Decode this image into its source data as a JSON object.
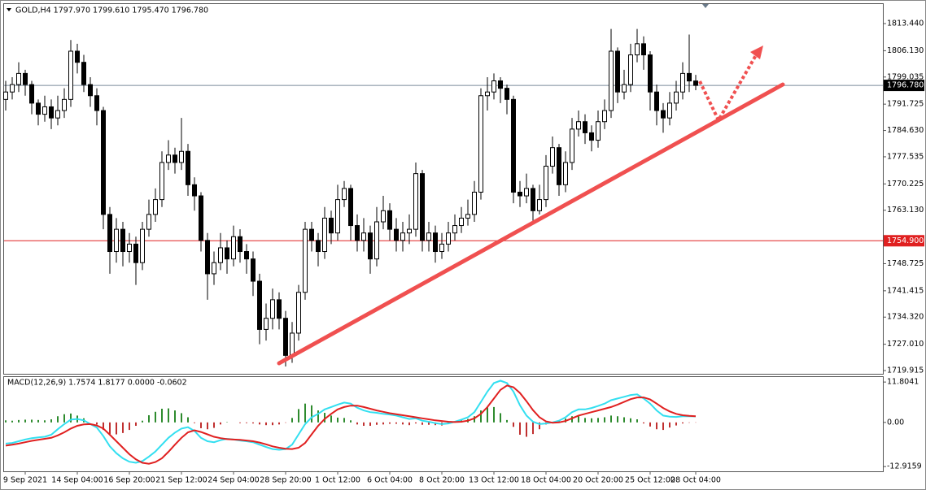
{
  "chart_data": [
    {
      "type": "candlestick",
      "title": "GOLD,H4 1797.970 1799.610 1795.470 1796.780",
      "categories": [
        null,
        null,
        null,
        "9 Sep 2021",
        null,
        null,
        null,
        null,
        null,
        null,
        null,
        "14 Sep 04:00",
        null,
        null,
        null,
        null,
        null,
        null,
        null,
        "16 Sep 20:00",
        null,
        null,
        null,
        null,
        null,
        null,
        null,
        "21 Sep 12:00",
        null,
        null,
        null,
        null,
        null,
        null,
        null,
        "24 Sep 04:00",
        null,
        null,
        null,
        null,
        null,
        null,
        null,
        "28 Sep 20:00",
        null,
        null,
        null,
        null,
        null,
        null,
        null,
        "1 Oct 12:00",
        null,
        null,
        null,
        null,
        null,
        null,
        null,
        "6 Oct 04:00",
        null,
        null,
        null,
        null,
        null,
        null,
        null,
        "8 Oct 20:00",
        null,
        null,
        null,
        null,
        null,
        null,
        null,
        "13 Oct 12:00",
        null,
        null,
        null,
        null,
        null,
        null,
        null,
        "18 Oct 04:00",
        null,
        null,
        null,
        null,
        null,
        null,
        null,
        "20 Oct 20:00",
        null,
        null,
        null,
        null,
        null,
        null,
        null,
        "25 Oct 12:00",
        null,
        null,
        null,
        null,
        null,
        null,
        "28 Oct 04:00"
      ],
      "ohlc": [
        [
          1793,
          1798,
          1790,
          1795
        ],
        [
          1795,
          1799,
          1793,
          1797
        ],
        [
          1797,
          1803,
          1795,
          1800
        ],
        [
          1800,
          1801,
          1794,
          1797
        ],
        [
          1797,
          1798,
          1789,
          1792
        ],
        [
          1792,
          1793,
          1786,
          1789
        ],
        [
          1789,
          1794,
          1787,
          1791
        ],
        [
          1791,
          1793,
          1785,
          1788
        ],
        [
          1788,
          1794,
          1786,
          1790
        ],
        [
          1790,
          1796,
          1788,
          1793
        ],
        [
          1793,
          1809,
          1791,
          1806
        ],
        [
          1806,
          1808,
          1800,
          1803
        ],
        [
          1803,
          1805,
          1795,
          1797
        ],
        [
          1797,
          1799,
          1791,
          1794
        ],
        [
          1794,
          1796,
          1786,
          1790
        ],
        [
          1790,
          1791,
          1758,
          1762
        ],
        [
          1762,
          1764,
          1746,
          1752
        ],
        [
          1752,
          1761,
          1749,
          1758
        ],
        [
          1758,
          1760,
          1748,
          1752
        ],
        [
          1752,
          1757,
          1749,
          1754
        ],
        [
          1754,
          1756,
          1743,
          1749
        ],
        [
          1749,
          1760,
          1747,
          1758
        ],
        [
          1758,
          1766,
          1756,
          1762
        ],
        [
          1762,
          1769,
          1760,
          1766
        ],
        [
          1766,
          1779,
          1764,
          1776
        ],
        [
          1776,
          1782,
          1774,
          1778
        ],
        [
          1778,
          1780,
          1773,
          1776
        ],
        [
          1776,
          1788,
          1774,
          1779
        ],
        [
          1779,
          1781,
          1767,
          1770
        ],
        [
          1770,
          1772,
          1763,
          1767
        ],
        [
          1767,
          1768,
          1752,
          1755
        ],
        [
          1755,
          1757,
          1739,
          1746
        ],
        [
          1746,
          1752,
          1743,
          1749
        ],
        [
          1749,
          1757,
          1747,
          1753
        ],
        [
          1753,
          1755,
          1746,
          1750
        ],
        [
          1750,
          1759,
          1748,
          1756
        ],
        [
          1756,
          1758,
          1749,
          1752
        ],
        [
          1752,
          1754,
          1746,
          1750
        ],
        [
          1750,
          1752,
          1740,
          1744
        ],
        [
          1744,
          1746,
          1727,
          1731
        ],
        [
          1731,
          1738,
          1728,
          1734
        ],
        [
          1734,
          1742,
          1731,
          1739
        ],
        [
          1739,
          1741,
          1731,
          1734
        ],
        [
          1734,
          1736,
          1721,
          1724
        ],
        [
          1724,
          1733,
          1722,
          1730
        ],
        [
          1730,
          1743,
          1728,
          1741
        ],
        [
          1741,
          1760,
          1739,
          1758
        ],
        [
          1758,
          1760,
          1752,
          1755
        ],
        [
          1755,
          1757,
          1748,
          1752
        ],
        [
          1752,
          1764,
          1750,
          1761
        ],
        [
          1761,
          1763,
          1754,
          1757
        ],
        [
          1757,
          1770,
          1755,
          1766
        ],
        [
          1766,
          1771,
          1764,
          1769
        ],
        [
          1769,
          1770,
          1755,
          1759
        ],
        [
          1759,
          1762,
          1752,
          1755
        ],
        [
          1755,
          1761,
          1752,
          1757
        ],
        [
          1757,
          1759,
          1746,
          1750
        ],
        [
          1750,
          1764,
          1748,
          1760
        ],
        [
          1760,
          1767,
          1758,
          1763
        ],
        [
          1763,
          1765,
          1755,
          1758
        ],
        [
          1758,
          1761,
          1752,
          1755
        ],
        [
          1755,
          1760,
          1752,
          1757
        ],
        [
          1757,
          1762,
          1754,
          1758
        ],
        [
          1758,
          1776,
          1756,
          1773
        ],
        [
          1773,
          1774,
          1752,
          1755
        ],
        [
          1755,
          1760,
          1752,
          1757
        ],
        [
          1757,
          1759,
          1749,
          1752
        ],
        [
          1752,
          1757,
          1750,
          1754
        ],
        [
          1754,
          1760,
          1752,
          1757
        ],
        [
          1757,
          1762,
          1755,
          1759
        ],
        [
          1759,
          1764,
          1757,
          1761
        ],
        [
          1761,
          1766,
          1759,
          1762
        ],
        [
          1762,
          1771,
          1760,
          1768
        ],
        [
          1768,
          1796,
          1766,
          1794
        ],
        [
          1794,
          1799,
          1790,
          1795
        ],
        [
          1795,
          1800,
          1793,
          1798
        ],
        [
          1798,
          1799,
          1792,
          1796
        ],
        [
          1796,
          1797,
          1789,
          1793
        ],
        [
          1793,
          1794,
          1765,
          1768
        ],
        [
          1768,
          1771,
          1764,
          1767
        ],
        [
          1767,
          1773,
          1765,
          1769
        ],
        [
          1769,
          1770,
          1760,
          1763
        ],
        [
          1763,
          1770,
          1762,
          1766
        ],
        [
          1766,
          1778,
          1764,
          1775
        ],
        [
          1775,
          1783,
          1773,
          1780
        ],
        [
          1780,
          1781,
          1767,
          1770
        ],
        [
          1770,
          1779,
          1768,
          1776
        ],
        [
          1776,
          1788,
          1774,
          1785
        ],
        [
          1785,
          1790,
          1783,
          1787
        ],
        [
          1787,
          1789,
          1781,
          1784
        ],
        [
          1784,
          1786,
          1779,
          1782
        ],
        [
          1782,
          1790,
          1780,
          1787
        ],
        [
          1787,
          1793,
          1785,
          1790
        ],
        [
          1790,
          1812,
          1788,
          1806
        ],
        [
          1806,
          1807,
          1792,
          1795
        ],
        [
          1795,
          1801,
          1793,
          1797
        ],
        [
          1797,
          1808,
          1795,
          1805
        ],
        [
          1805,
          1812,
          1803,
          1808
        ],
        [
          1808,
          1810,
          1801,
          1805
        ],
        [
          1805,
          1806,
          1790,
          1795
        ],
        [
          1795,
          1797,
          1786,
          1790
        ],
        [
          1790,
          1792,
          1784,
          1788
        ],
        [
          1788,
          1795,
          1786,
          1792
        ],
        [
          1792,
          1798,
          1790,
          1795
        ],
        [
          1795,
          1803,
          1793,
          1800
        ],
        [
          1800,
          1810.5,
          1795,
          1797.97
        ],
        [
          1797.97,
          1799.61,
          1795.47,
          1796.78
        ]
      ],
      "up_color": "#ffffff",
      "down_color": "#000000",
      "ylim": [
        1719.04,
        1818.92
      ],
      "yticks": [
        {
          "value": 1813.44,
          "label": "1813.440"
        },
        {
          "value": 1806.13,
          "label": "1806.130"
        },
        {
          "value": 1799.035,
          "label": "1799.035"
        },
        {
          "value": 1791.725,
          "label": "1791.725"
        },
        {
          "value": 1784.63,
          "label": "1784.630"
        },
        {
          "value": 1777.535,
          "label": "1777.535"
        },
        {
          "value": 1770.225,
          "label": "1770.225"
        },
        {
          "value": 1763.13,
          "label": "1763.130"
        },
        {
          "value": 1748.725,
          "label": "1748.725"
        },
        {
          "value": 1741.415,
          "label": "1741.415"
        },
        {
          "value": 1734.32,
          "label": "1734.320"
        },
        {
          "value": 1727.01,
          "label": "1727.010"
        },
        {
          "value": 1719.915,
          "label": "1719.915"
        }
      ],
      "hlines": [
        {
          "value": 1796.78,
          "label": "1796.780",
          "color": "#7a8a9a"
        },
        {
          "value": 1754.9,
          "label": "1754.900",
          "color": "#e02020"
        }
      ]
    },
    {
      "type": "macd",
      "title": "MACD(12,26,9) 1.7574 1.8177 0.0000 -0.0602",
      "ylim": [
        -14.3,
        13.5
      ],
      "yticks": [
        11.8041,
        {
          "value": 0,
          "label": "0.00"
        },
        -12.9159
      ],
      "histogram": [
        0.6,
        0.5,
        0.7,
        0.8,
        0.8,
        0.7,
        0.6,
        0.9,
        1.8,
        2.4,
        2.6,
        2.0,
        1.2,
        0.0,
        -0.6,
        -2.2,
        -3.4,
        -3.5,
        -3.1,
        -2.2,
        -1.0,
        0.5,
        2.1,
        3.1,
        4.0,
        4.1,
        3.5,
        2.7,
        1.5,
        -0.2,
        -1.7,
        -2.0,
        -1.6,
        -0.6,
        0.1,
        0.0,
        -0.2,
        -0.2,
        -0.3,
        -0.6,
        -0.8,
        -0.8,
        -0.6,
        -0.1,
        1.3,
        3.9,
        5.5,
        5.0,
        3.5,
        2.8,
        2.0,
        1.4,
        1.3,
        0.6,
        -0.6,
        -1.0,
        -1.0,
        -0.7,
        -0.6,
        -0.4,
        -0.4,
        -0.6,
        -0.8,
        -0.3,
        -0.7,
        -0.7,
        -0.8,
        -0.9,
        -0.5,
        0.1,
        0.6,
        1.0,
        1.8,
        3.5,
        4.5,
        4.5,
        2.7,
        0.7,
        -1.3,
        -3.6,
        -4.2,
        -3.4,
        -2.0,
        -0.6,
        0.1,
        0.5,
        1.1,
        1.8,
        1.8,
        1.3,
        1.2,
        1.3,
        1.5,
        2.0,
        1.8,
        1.5,
        1.2,
        0.9,
        -0.3,
        -1.2,
        -2.0,
        -2.2,
        -1.5,
        -0.9,
        -0.3,
        -0.1,
        -0.0602
      ],
      "pos_color": "#2e8b2e",
      "neg_color": "#c03030",
      "series": [
        {
          "color": "#33dff0",
          "values": [
            -6.2,
            -6.0,
            -5.5,
            -5.0,
            -4.6,
            -4.4,
            -4.2,
            -3.6,
            -2.0,
            -0.5,
            0.8,
            1.0,
            0.6,
            -0.5,
            -1.5,
            -4.0,
            -7.0,
            -9.0,
            -10.5,
            -11.5,
            -11.8,
            -11.3,
            -10.0,
            -8.5,
            -6.5,
            -4.5,
            -3.0,
            -1.8,
            -1.4,
            -2.5,
            -4.5,
            -5.5,
            -5.8,
            -5.2,
            -4.8,
            -5.0,
            -5.3,
            -5.5,
            -5.8,
            -6.5,
            -7.2,
            -7.8,
            -8.0,
            -7.8,
            -6.5,
            -3.5,
            -0.5,
            1.5,
            2.5,
            3.8,
            4.5,
            5.2,
            5.8,
            5.5,
            4.3,
            3.5,
            3.0,
            2.8,
            2.5,
            2.3,
            2.0,
            1.5,
            1.0,
            1.2,
            0.5,
            0.2,
            -0.2,
            -0.5,
            -0.3,
            0.2,
            0.8,
            1.5,
            3.0,
            6.0,
            9.0,
            11.5,
            12.2,
            11.5,
            9.0,
            5.0,
            2.0,
            0.2,
            -0.5,
            -0.3,
            0.0,
            0.5,
            1.5,
            3.0,
            3.8,
            3.8,
            4.2,
            4.8,
            5.5,
            6.5,
            7.0,
            7.5,
            8.0,
            8.2,
            7.0,
            5.5,
            3.5,
            2.0,
            1.7,
            1.6,
            1.8,
            1.8,
            1.7574
          ]
        },
        {
          "color": "#e02020",
          "values": [
            -6.8,
            -6.5,
            -6.2,
            -5.8,
            -5.4,
            -5.1,
            -4.8,
            -4.5,
            -3.8,
            -2.9,
            -1.8,
            -1.0,
            -0.6,
            -0.5,
            -0.9,
            -1.8,
            -3.6,
            -5.5,
            -7.4,
            -9.3,
            -10.8,
            -11.8,
            -12.1,
            -11.6,
            -10.5,
            -8.6,
            -6.5,
            -4.5,
            -2.9,
            -2.3,
            -2.8,
            -3.5,
            -4.2,
            -4.6,
            -4.9,
            -5.0,
            -5.1,
            -5.3,
            -5.5,
            -5.9,
            -6.4,
            -7.0,
            -7.4,
            -7.7,
            -7.8,
            -7.4,
            -6.0,
            -3.5,
            -1.0,
            1.0,
            2.5,
            3.8,
            4.5,
            4.9,
            4.9,
            4.5,
            4.0,
            3.5,
            3.1,
            2.7,
            2.4,
            2.1,
            1.8,
            1.5,
            1.2,
            0.9,
            0.6,
            0.4,
            0.2,
            0.1,
            0.2,
            0.5,
            1.2,
            2.5,
            4.5,
            7.0,
            9.5,
            10.8,
            10.3,
            8.6,
            6.2,
            3.6,
            1.5,
            0.3,
            -0.1,
            0.0,
            0.4,
            1.2,
            2.0,
            2.5,
            3.0,
            3.5,
            4.0,
            4.5,
            5.2,
            6.0,
            6.8,
            7.3,
            7.3,
            6.7,
            5.5,
            4.2,
            3.2,
            2.5,
            2.1,
            1.9,
            1.8177
          ]
        }
      ]
    }
  ]
}
